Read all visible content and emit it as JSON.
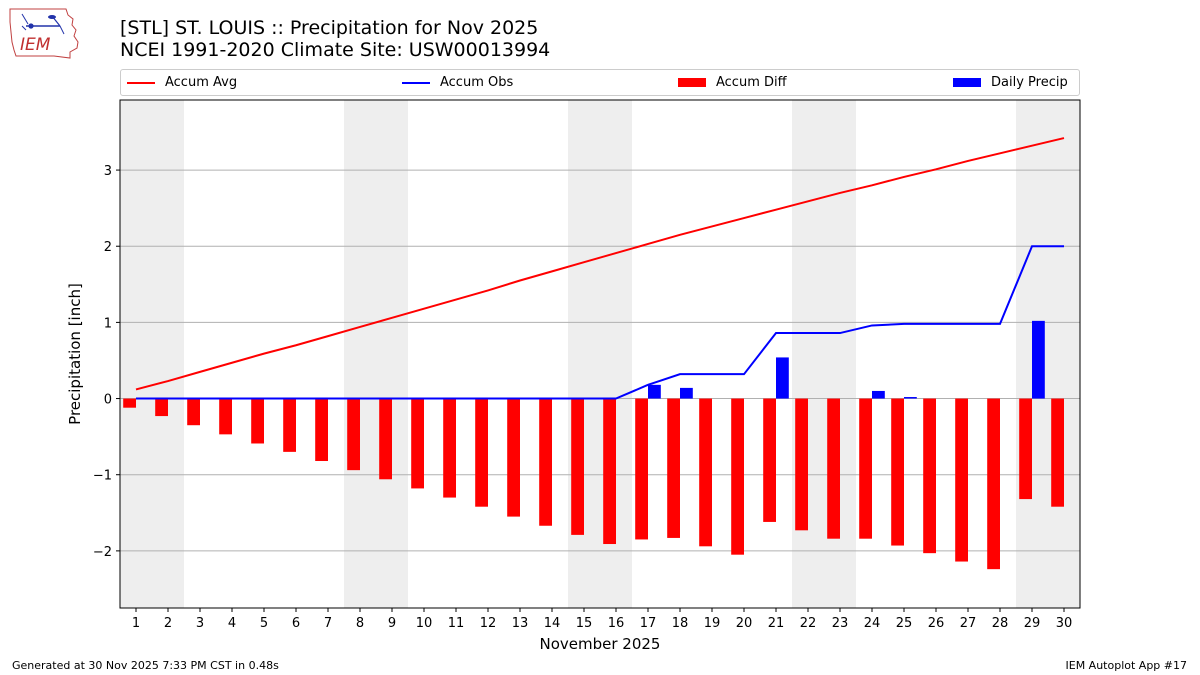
{
  "logo": {
    "text": "IEM"
  },
  "header": {
    "title_line1": "[STL] ST. LOUIS :: Precipitation for Nov 2025",
    "title_line2": "NCEI 1991-2020 Climate Site: USW00013994"
  },
  "footer": {
    "generated": "Generated at 30 Nov 2025 7:33 PM CST in 0.48s",
    "app": "IEM Autoplot App #17"
  },
  "colors": {
    "accum_avg": "#ff0000",
    "accum_obs": "#0000ff",
    "accum_diff": "#ff0000",
    "daily_precip": "#0000ff",
    "weekend_band": "#eeeeee",
    "grid": "#b0b0b0"
  },
  "chart_data": {
    "type": "bar",
    "title": "[STL] ST. LOUIS :: Precipitation for Nov 2025",
    "xlabel": "November 2025",
    "ylabel": "Precipitation [inch]",
    "xlim": [
      0.5,
      30.5
    ],
    "ylim": [
      -2.75,
      3.92
    ],
    "yticks": [
      -2,
      -1,
      0,
      1,
      2,
      3
    ],
    "ytick_labels": [
      "−2",
      "−1",
      "0",
      "1",
      "2",
      "3"
    ],
    "grid": "horizontal",
    "legend_position": "top",
    "legend": [
      "Accum Avg",
      "Accum Obs",
      "Accum Diff",
      "Daily Precip"
    ],
    "days": [
      1,
      2,
      3,
      4,
      5,
      6,
      7,
      8,
      9,
      10,
      11,
      12,
      13,
      14,
      15,
      16,
      17,
      18,
      19,
      20,
      21,
      22,
      23,
      24,
      25,
      26,
      27,
      28,
      29,
      30
    ],
    "weekend_bands": [
      [
        0.5,
        2.5
      ],
      [
        7.5,
        9.5
      ],
      [
        14.5,
        16.5
      ],
      [
        21.5,
        23.5
      ],
      [
        28.5,
        30.5
      ]
    ],
    "series": [
      {
        "name": "Accum Avg",
        "type": "line",
        "values": [
          0.12,
          0.23,
          0.35,
          0.47,
          0.59,
          0.7,
          0.82,
          0.94,
          1.06,
          1.18,
          1.3,
          1.42,
          1.55,
          1.67,
          1.79,
          1.91,
          2.03,
          2.15,
          2.26,
          2.37,
          2.48,
          2.59,
          2.7,
          2.8,
          2.91,
          3.01,
          3.12,
          3.22,
          3.32,
          3.42
        ]
      },
      {
        "name": "Accum Obs",
        "type": "line",
        "values": [
          0,
          0,
          0,
          0,
          0,
          0,
          0,
          0,
          0,
          0,
          0,
          0,
          0,
          0,
          0,
          0,
          0.18,
          0.32,
          0.32,
          0.32,
          0.86,
          0.86,
          0.86,
          0.96,
          0.98,
          0.98,
          0.98,
          0.98,
          2.0,
          2.0
        ]
      },
      {
        "name": "Accum Diff",
        "type": "bar",
        "values": [
          -0.12,
          -0.23,
          -0.35,
          -0.47,
          -0.59,
          -0.7,
          -0.82,
          -0.94,
          -1.06,
          -1.18,
          -1.3,
          -1.42,
          -1.55,
          -1.67,
          -1.79,
          -1.91,
          -1.85,
          -1.83,
          -1.94,
          -2.05,
          -1.62,
          -1.73,
          -1.84,
          -1.84,
          -1.93,
          -2.03,
          -2.14,
          -2.24,
          -1.32,
          -1.42
        ]
      },
      {
        "name": "Daily Precip",
        "type": "bar",
        "values": [
          0,
          0,
          0,
          0,
          0,
          0,
          0,
          0,
          0,
          0,
          0,
          0,
          0,
          0,
          0,
          0,
          0.18,
          0.14,
          0,
          0,
          0.54,
          0,
          0,
          0.1,
          0.02,
          0,
          0,
          0,
          1.02,
          0
        ]
      }
    ]
  }
}
